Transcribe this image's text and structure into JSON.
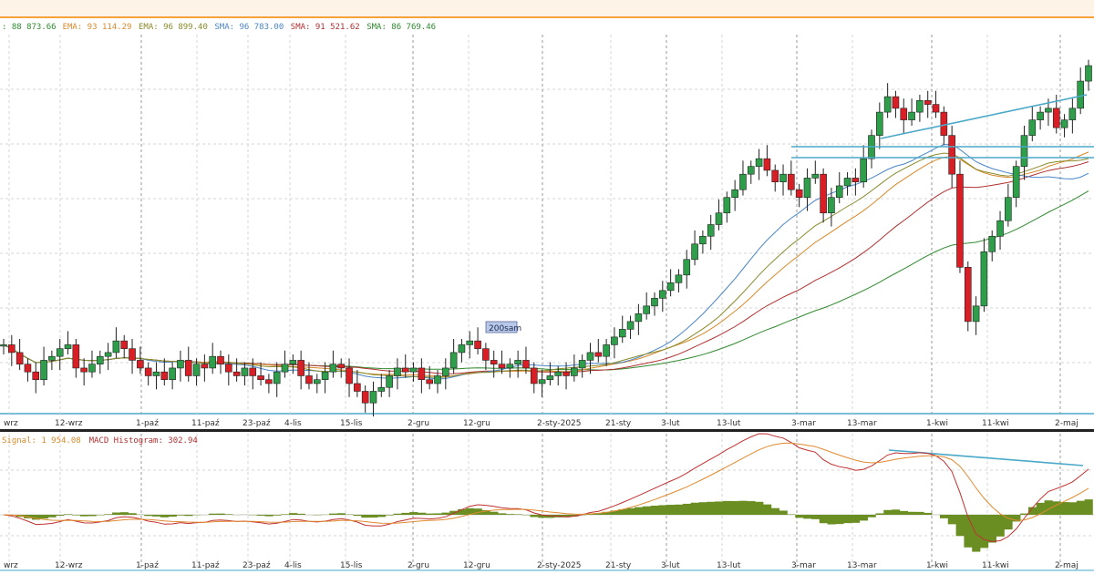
{
  "legend_top": [
    {
      "text": ": 88 873.66",
      "color": "#2f8a2f"
    },
    {
      "text": "EMA: 93 114.29",
      "color": "#d8892b"
    },
    {
      "text": "EMA: 96 899.40",
      "color": "#8a8a2a"
    },
    {
      "text": "SMA: 96 783.00",
      "color": "#4a86c8"
    },
    {
      "text": "SMA: 91 521.62",
      "color": "#b03030"
    },
    {
      "text": "SMA: 86 769.46",
      "color": "#2f8a2f"
    }
  ],
  "legend_bottom": [
    {
      "text": "Signal: 1 954.08",
      "color": "#d8892b"
    },
    {
      "text": "MACD Histogram: 302.94",
      "color": "#b03030"
    }
  ],
  "annotation": "200sam",
  "colors": {
    "up": "#2e9e4a",
    "down": "#d81f26",
    "macd_line": "#c03030",
    "signal_line": "#e08a30",
    "histogram": "#6b8e23",
    "trendline": "#4aa8c8",
    "grid": "#d6d6d6"
  },
  "chart_data": {
    "type": "candlestick",
    "x_tick_labels": [
      "wrz",
      "12-wrz",
      "1-paź",
      "11-paź",
      "23-paź",
      "4-lis",
      "15-lis",
      "2-gru",
      "12-gru",
      "2-sty-2025",
      "21-sty",
      "3-lut",
      "13-lut",
      "3-mar",
      "13-mar",
      "1-kwi",
      "11-kwi",
      "2-maj"
    ],
    "price_close": [
      102,
      100,
      97,
      95,
      93,
      98,
      99,
      101,
      102,
      96,
      95,
      97,
      99,
      100,
      103,
      101,
      98,
      96,
      94,
      95,
      93,
      96,
      98,
      94,
      97,
      96,
      99,
      97,
      95,
      94,
      96,
      94,
      93,
      92,
      95,
      97,
      98,
      94,
      92,
      93,
      95,
      97,
      96,
      92,
      90,
      87,
      90,
      91,
      94,
      96,
      95,
      96,
      93,
      92,
      94,
      96,
      100,
      102,
      103,
      101,
      98,
      97,
      96,
      97,
      98,
      96,
      92,
      93,
      94,
      95,
      94,
      96,
      98,
      100,
      99,
      102,
      104,
      106,
      108,
      110,
      112,
      114,
      116,
      118,
      120,
      124,
      128,
      130,
      133,
      136,
      140,
      142,
      146,
      148,
      150,
      147,
      144,
      146,
      142,
      140,
      145,
      146,
      136,
      140,
      143,
      145,
      144,
      150,
      156,
      162,
      166,
      163,
      160,
      162,
      165,
      164,
      162,
      156,
      146,
      122,
      108,
      112,
      126,
      130,
      134,
      140,
      148,
      156,
      160,
      162,
      163,
      158,
      160,
      163,
      170,
      174
    ],
    "macd_histogram_range": [
      -1600,
      1200
    ],
    "macd_zero_line": true
  }
}
